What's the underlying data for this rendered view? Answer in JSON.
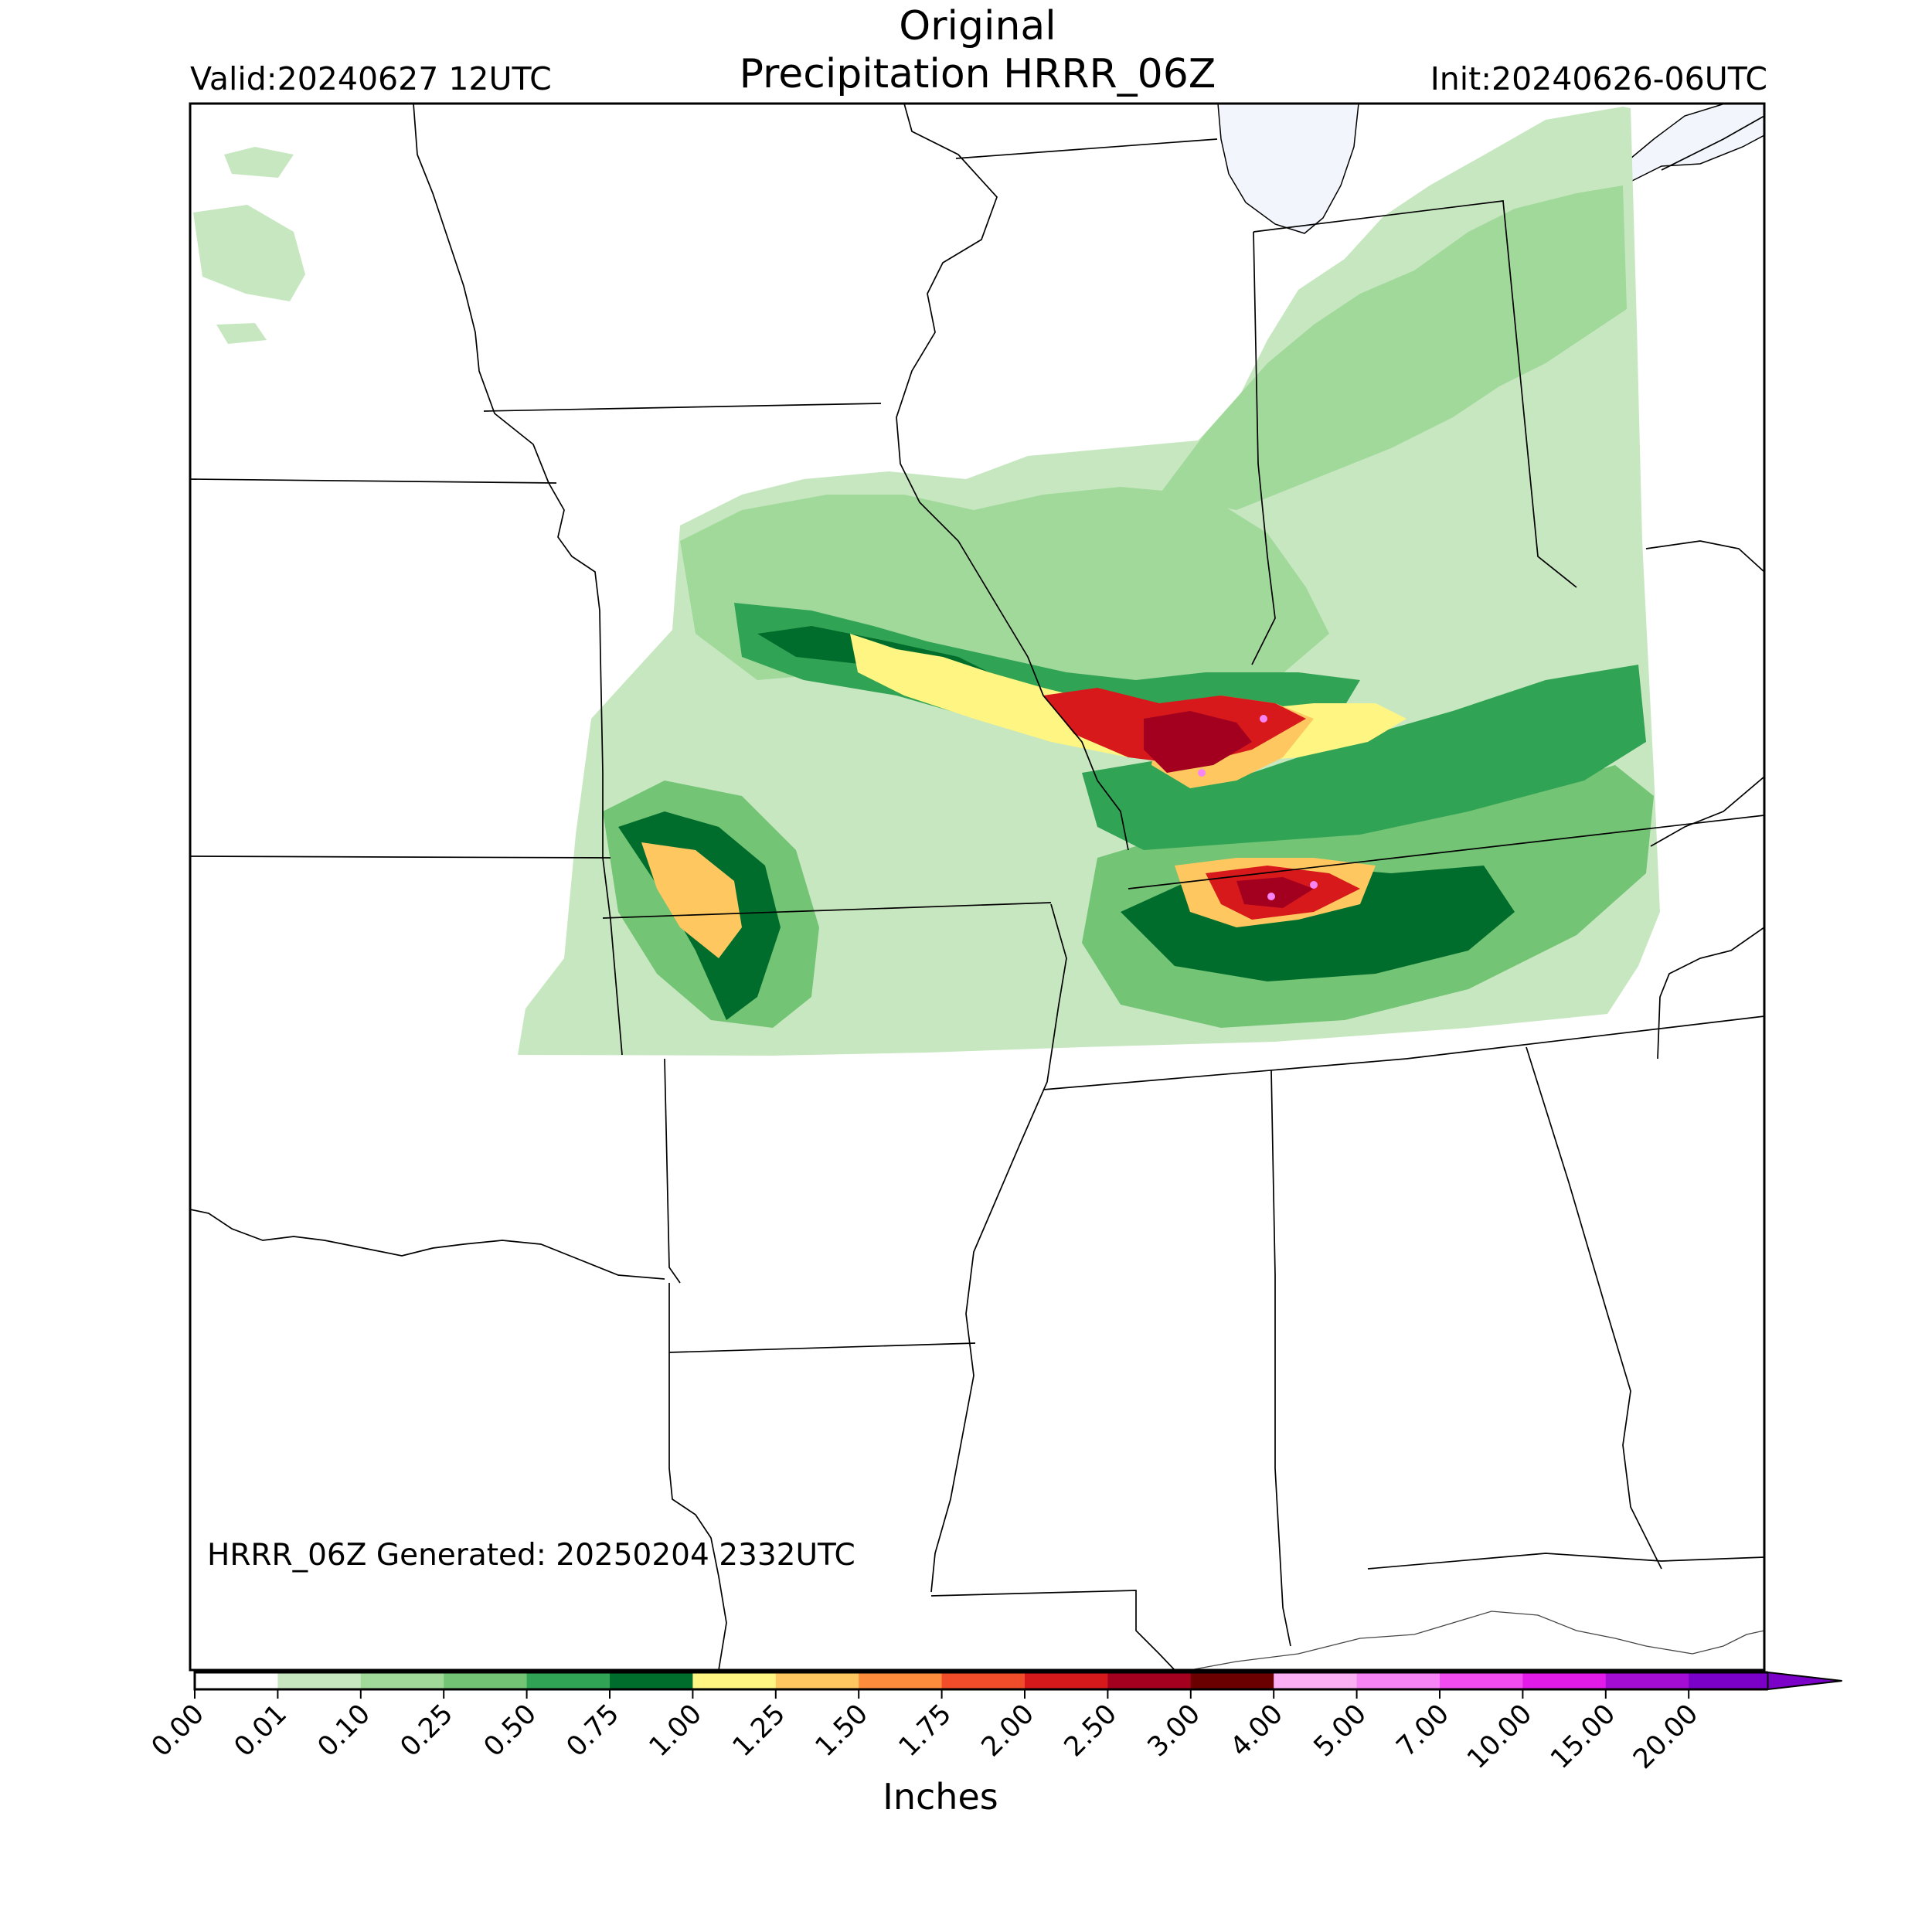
{
  "title": {
    "line1": "Original",
    "line2": "Precipitation HRRR_06Z"
  },
  "valid_label": "Valid:20240627 12UTC",
  "init_label": "Init:20240626-06UTC",
  "generated_label": "HRRR_06Z Generated: 20250204 2332UTC",
  "colorbar": {
    "label": "Inches",
    "ticks": [
      "0.00",
      "0.01",
      "0.10",
      "0.25",
      "0.50",
      "0.75",
      "1.00",
      "1.25",
      "1.50",
      "1.75",
      "2.00",
      "2.50",
      "3.00",
      "4.00",
      "5.00",
      "7.00",
      "10.00",
      "15.00",
      "20.00"
    ],
    "colors": [
      "#ffffff",
      "#c7e7c0",
      "#a1d99b",
      "#74c476",
      "#31a354",
      "#006d2c",
      "#fff582",
      "#fec760",
      "#fd8d3c",
      "#f24d2a",
      "#d7191c",
      "#a3001f",
      "#6b0000",
      "#fbb0f4",
      "#f784f4",
      "#f04cf0",
      "#e21be9",
      "#a40ed4",
      "#7b00c8"
    ],
    "extend": "max"
  },
  "colors": {
    "water": "#f2f6fc",
    "border": "#000000",
    "frame": "#000000"
  }
}
